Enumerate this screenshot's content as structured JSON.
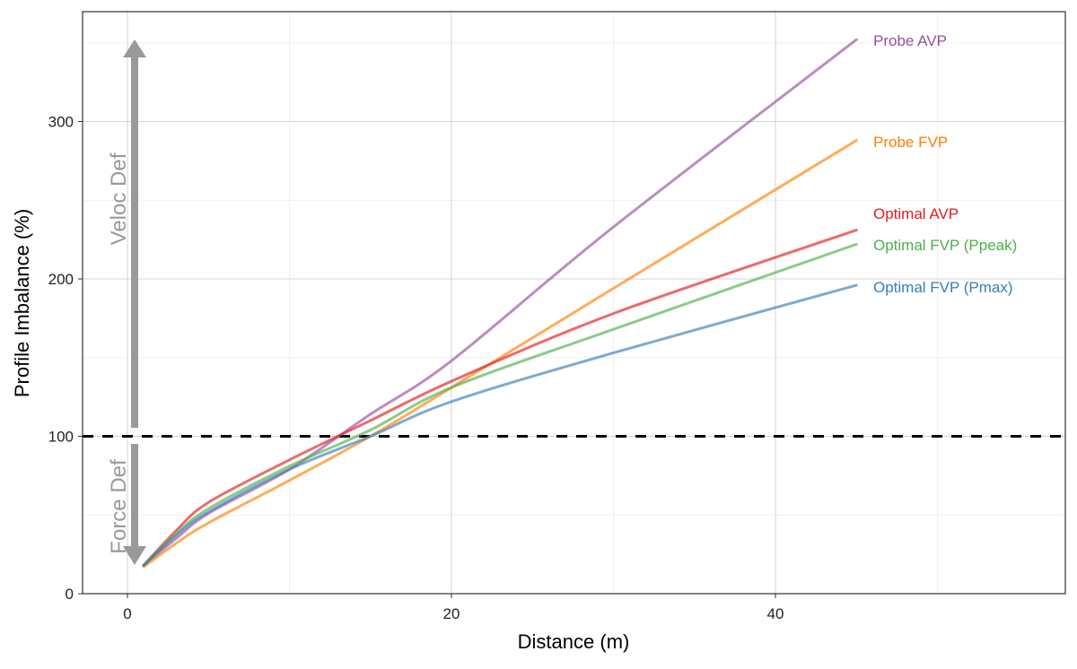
{
  "chart_data": {
    "type": "line",
    "title": "",
    "xlabel": "Distance (m)",
    "ylabel": "Profile Imbalance (%)",
    "xlim": [
      -2.8,
      57.9
    ],
    "ylim": [
      0,
      370
    ],
    "grid": true,
    "x_ticks": [
      0,
      20,
      40
    ],
    "y_ticks": [
      0,
      100,
      200,
      300
    ],
    "x_tick_labels": [
      "0",
      "20",
      "40"
    ],
    "y_tick_labels": [
      "0",
      "100",
      "200",
      "300"
    ],
    "reference_line": {
      "y": 100,
      "style": "dashed",
      "color": "#000000"
    },
    "x": [
      1,
      3,
      5,
      10,
      15,
      20,
      30,
      45
    ],
    "series": [
      {
        "name": "Probe AVP",
        "color": "#984EA3",
        "values": [
          18,
          35,
          51,
          79,
          114,
          148,
          233,
          352
        ]
      },
      {
        "name": "Probe FVP",
        "color": "#FF7F00",
        "values": [
          17,
          32,
          45,
          72,
          100,
          131,
          194,
          288
        ]
      },
      {
        "name": "Optimal AVP",
        "color": "#E41A1C",
        "values": [
          18,
          40,
          58,
          85,
          110,
          135,
          178,
          231
        ]
      },
      {
        "name": "Optimal FVP (Ppeak)",
        "color": "#4DAF4A",
        "values": [
          18,
          38,
          54,
          81,
          104,
          131,
          168,
          222
        ]
      },
      {
        "name": "Optimal FVP (Pmax)",
        "color": "#377EB8",
        "values": [
          18,
          37,
          52,
          79,
          100,
          122,
          153,
          196
        ]
      }
    ],
    "annotations": {
      "arrow_up_label": "Veloc Def",
      "arrow_down_label": "Force Def",
      "arrow_color": "#999999"
    }
  }
}
